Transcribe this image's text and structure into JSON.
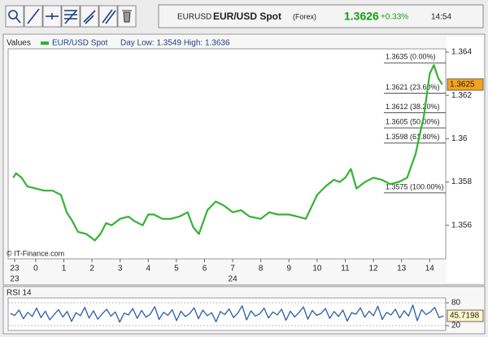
{
  "header": {
    "symbol": "EURUSD",
    "name": "EUR/USD Spot",
    "market": "(Forex)",
    "price": "1.3626",
    "change": "+0.33%",
    "time": "14:54"
  },
  "chart_data": [
    {
      "type": "line",
      "legend_title": "Values",
      "annotation": "Day Low: 1.3549 High: 1.3636",
      "credit": "© IT-Finance.com",
      "x": [
        -0.8,
        -0.7,
        -0.5,
        -0.3,
        0,
        0.3,
        0.6,
        0.9,
        1.1,
        1.3,
        1.5,
        1.8,
        2.1,
        2.3,
        2.5,
        2.7,
        3.0,
        3.3,
        3.5,
        3.8,
        4.0,
        4.2,
        4.5,
        4.8,
        5.1,
        5.4,
        5.6,
        5.8,
        6.1,
        6.4,
        6.7,
        7.0,
        7.3,
        7.6,
        8.0,
        8.3,
        8.6,
        9.0,
        9.3,
        9.6,
        10.0,
        10.3,
        10.6,
        10.8,
        11.0,
        11.2,
        11.4,
        11.7,
        12.0,
        12.3,
        12.6,
        12.9,
        13.2,
        13.5,
        13.8,
        14.0,
        14.15,
        14.3,
        14.45
      ],
      "series": [
        {
          "name": "EUR/USD Spot",
          "color": "#33b333",
          "last_value": 1.3625,
          "values": [
            1.3582,
            1.3584,
            1.3582,
            1.3578,
            1.3577,
            1.3576,
            1.3576,
            1.3574,
            1.3566,
            1.3562,
            1.3557,
            1.3556,
            1.3553,
            1.3556,
            1.3561,
            1.356,
            1.3563,
            1.3564,
            1.3562,
            1.356,
            1.3565,
            1.3565,
            1.3563,
            1.3563,
            1.3564,
            1.3566,
            1.3559,
            1.3556,
            1.3567,
            1.3571,
            1.3569,
            1.3566,
            1.3567,
            1.3564,
            1.3563,
            1.3566,
            1.3565,
            1.3565,
            1.3564,
            1.3563,
            1.3574,
            1.3578,
            1.3581,
            1.358,
            1.3582,
            1.3586,
            1.3577,
            1.358,
            1.3582,
            1.3581,
            1.3579,
            1.358,
            1.3582,
            1.3593,
            1.3611,
            1.363,
            1.3634,
            1.3628,
            1.3625
          ]
        }
      ],
      "xlim": [
        -0.98,
        14.57
      ],
      "xticks": [
        {
          "value": -0.75,
          "label": "23"
        },
        0,
        1,
        2,
        3,
        4,
        5,
        6,
        7,
        8,
        9,
        10,
        11,
        12,
        13,
        14
      ],
      "x_date_ticks": [
        {
          "value": -0.75,
          "label": "23"
        },
        {
          "value": 7,
          "label": "24"
        }
      ],
      "ylim": [
        1.35445,
        1.36415
      ],
      "yticks": [
        1.356,
        1.358,
        1.36,
        1.362,
        1.364
      ],
      "grid": false,
      "fib_levels": [
        {
          "value": 1.3635,
          "label": "1.3635 (0.00%)"
        },
        {
          "value": 1.3621,
          "label": "1.3621 (23.60%)"
        },
        {
          "value": 1.3612,
          "label": "1.3612 (38.20%)"
        },
        {
          "value": 1.3605,
          "label": "1.3605 (50.00%)"
        },
        {
          "value": 1.3598,
          "label": "1.3598 (61.80%)"
        },
        {
          "value": 1.3575,
          "label": "1.3575 (100.00%)"
        }
      ]
    },
    {
      "type": "line",
      "title": "RSI 14",
      "color": "#2a5caa",
      "last_value": 45.7198,
      "values": [
        52,
        47,
        61,
        38,
        55,
        44,
        66,
        41,
        58,
        35,
        49,
        62,
        43,
        57,
        31,
        54,
        46,
        68,
        40,
        59,
        37,
        51,
        63,
        45,
        56,
        29,
        53,
        48,
        65,
        39,
        60,
        42,
        50,
        70,
        36,
        55,
        47,
        62,
        33,
        58,
        44,
        52,
        67,
        38,
        61,
        46,
        54,
        30,
        57,
        49,
        64,
        41,
        53,
        72,
        35,
        59,
        45,
        51,
        66,
        40,
        56,
        48,
        63,
        34,
        58,
        43,
        55,
        69,
        37,
        60,
        47,
        52,
        65,
        39,
        57,
        44,
        61,
        32,
        54,
        50,
        67,
        42,
        58,
        46,
        71,
        36,
        55,
        48,
        63,
        40,
        59,
        45,
        74,
        33,
        62,
        49,
        56,
        68,
        41,
        45.7198
      ],
      "ylim": [
        7.1,
        92.9
      ],
      "yticks": [
        20,
        80
      ],
      "grid": true
    }
  ]
}
